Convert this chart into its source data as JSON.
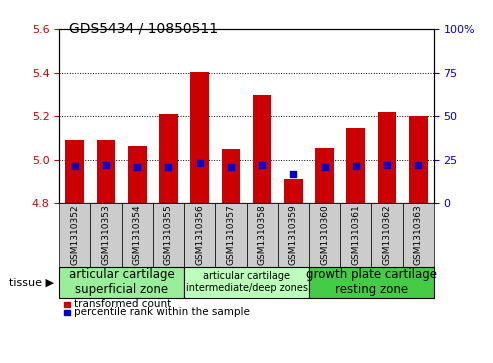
{
  "title": "GDS5434 / 10850511",
  "samples": [
    "GSM1310352",
    "GSM1310353",
    "GSM1310354",
    "GSM1310355",
    "GSM1310356",
    "GSM1310357",
    "GSM1310358",
    "GSM1310359",
    "GSM1310360",
    "GSM1310361",
    "GSM1310362",
    "GSM1310363"
  ],
  "bar_bottom": 4.8,
  "bar_tops": [
    5.09,
    5.09,
    5.065,
    5.21,
    5.405,
    5.05,
    5.295,
    4.91,
    5.055,
    5.145,
    5.22,
    5.2
  ],
  "blue_vals": [
    4.97,
    4.975,
    4.965,
    4.965,
    4.985,
    4.965,
    4.975,
    4.935,
    4.965,
    4.97,
    4.975,
    4.975
  ],
  "ylim": [
    4.8,
    5.6
  ],
  "yticks_left": [
    4.8,
    5.0,
    5.2,
    5.4,
    5.6
  ],
  "yticks_right": [
    0,
    25,
    50,
    75,
    100
  ],
  "bar_color": "#cc0000",
  "dot_color": "#0000cc",
  "bar_width": 0.6,
  "groups": [
    {
      "label": "articular cartilage\nsuperficial zone",
      "start": 0,
      "end": 4,
      "color": "#99ee99",
      "fontsize": 8.5
    },
    {
      "label": "articular cartilage\nintermediate/deep zones",
      "start": 4,
      "end": 8,
      "color": "#bbffbb",
      "fontsize": 7.0
    },
    {
      "label": "growth plate cartilage\nresting zone",
      "start": 8,
      "end": 12,
      "color": "#44cc44",
      "fontsize": 8.5
    }
  ],
  "tissue_label": "tissue",
  "legend_red": "transformed count",
  "legend_blue": "percentile rank within the sample",
  "grid_yticks": [
    5.0,
    5.2,
    5.4
  ],
  "tick_label_color_left": "#cc0000",
  "tick_label_color_right": "#0000cc",
  "tick_box_color": "#cccccc"
}
